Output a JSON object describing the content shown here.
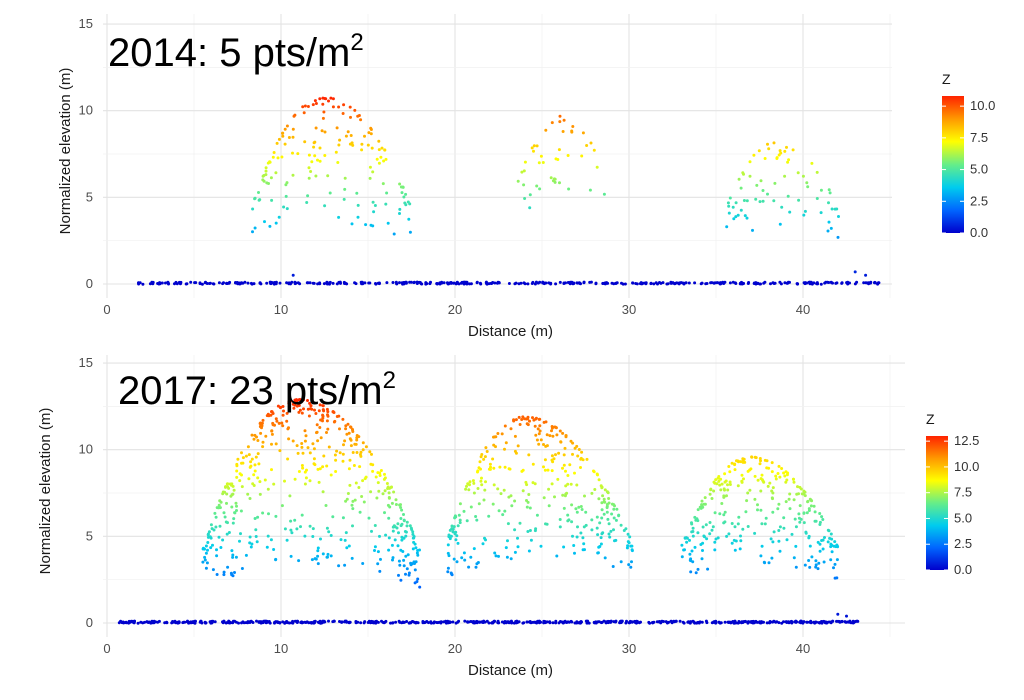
{
  "chart_data": [
    {
      "type": "scatter",
      "title": "2014: 5 pts/m",
      "title_sup": "2",
      "xlabel": "Distance (m)",
      "ylabel": "Normalized elevation (m)",
      "xlim": [
        0,
        45
      ],
      "ylim": [
        0,
        15
      ],
      "xticks": [
        0,
        10,
        20,
        30,
        40
      ],
      "yticks": [
        0,
        5,
        10,
        15
      ],
      "grid": true,
      "legend": {
        "title": "Z",
        "placement": "right",
        "ticks": [
          "10.0",
          "7.5",
          "5.0",
          "2.5",
          "0.0"
        ],
        "tick_values": [
          10,
          7.5,
          5,
          2.5,
          0
        ],
        "zmax": 10.8
      },
      "colormap": [
        "#0000cc",
        "#0066ff",
        "#00ccee",
        "#66ee88",
        "#ffff00",
        "#ff9900",
        "#ff2200"
      ],
      "ground": {
        "x_range": [
          1.8,
          44.5
        ],
        "z": 0.05
      },
      "crowns": [
        {
          "x_range": [
            8.3,
            17.5
          ],
          "z_range": [
            2.2,
            10.8
          ],
          "peak_x": 12.5,
          "peak_z": 10.8,
          "n": 170
        },
        {
          "x_range": [
            23.5,
            28.6
          ],
          "z_range": [
            3.8,
            9.8
          ],
          "peak_x": 26.5,
          "peak_z": 9.8,
          "n": 45
        },
        {
          "x_range": [
            35.5,
            42.1
          ],
          "z_range": [
            2.3,
            8.2
          ],
          "peak_x": 38.5,
          "peak_z": 8.2,
          "n": 75
        }
      ],
      "outliers": [
        {
          "x": 10.7,
          "z": 0.5
        },
        {
          "x": 43.0,
          "z": 0.7
        },
        {
          "x": 43.6,
          "z": 0.5
        }
      ]
    },
    {
      "type": "scatter",
      "title": "2017: 23 pts/m",
      "title_sup": "2",
      "xlabel": "Distance (m)",
      "ylabel": "Normalized elevation (m)",
      "xlim": [
        0,
        45
      ],
      "ylim": [
        0,
        15
      ],
      "xticks": [
        0,
        10,
        20,
        30,
        40
      ],
      "yticks": [
        0,
        5,
        10,
        15
      ],
      "grid": true,
      "legend": {
        "title": "Z",
        "placement": "right",
        "ticks": [
          "12.5",
          "10.0",
          "7.5",
          "5.0",
          "2.5",
          "0.0"
        ],
        "tick_values": [
          12.5,
          10,
          7.5,
          5,
          2.5,
          0
        ],
        "zmax": 13.0
      },
      "colormap": [
        "#0000cc",
        "#0066ff",
        "#00ccee",
        "#66ee88",
        "#ffff00",
        "#ff9900",
        "#ff2200"
      ],
      "ground": {
        "x_range": [
          0.7,
          43.2
        ],
        "z": 0.05
      },
      "crowns": [
        {
          "x_range": [
            5.5,
            18.0
          ],
          "z_range": [
            1.8,
            12.9
          ],
          "peak_x": 11.0,
          "peak_z": 12.9,
          "n": 520
        },
        {
          "x_range": [
            19.5,
            30.2
          ],
          "z_range": [
            2.3,
            11.9
          ],
          "peak_x": 24.0,
          "peak_z": 11.9,
          "n": 360
        },
        {
          "x_range": [
            33.0,
            42.0
          ],
          "z_range": [
            2.3,
            9.6
          ],
          "peak_x": 37.0,
          "peak_z": 9.6,
          "n": 300
        }
      ],
      "outliers": [
        {
          "x": 42.0,
          "z": 0.5
        },
        {
          "x": 42.5,
          "z": 0.4
        }
      ]
    }
  ]
}
